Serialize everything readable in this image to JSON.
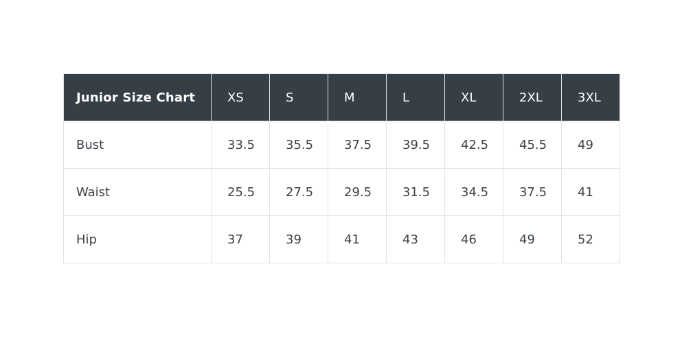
{
  "chart_data": {
    "type": "table",
    "title": "Junior Size Chart",
    "columns": [
      "Junior Size Chart",
      "XS",
      "S",
      "M",
      "L",
      "XL",
      "2XL",
      "3XL"
    ],
    "rows": [
      [
        "Bust",
        33.5,
        35.5,
        37.5,
        39.5,
        42.5,
        45.5,
        49
      ],
      [
        "Waist",
        25.5,
        27.5,
        29.5,
        31.5,
        34.5,
        37.5,
        41
      ],
      [
        "Hip",
        37,
        39,
        41,
        43,
        46,
        49,
        52
      ]
    ],
    "layout": {
      "header_position": "top",
      "grid": true
    }
  },
  "colors": {
    "page_bg": "#ffffff",
    "header_bg": "#363e46",
    "header_text": "#ffffff",
    "body_text": "#3b4249",
    "cell_bg": "#ffffff",
    "border": "#dfe2e5"
  }
}
